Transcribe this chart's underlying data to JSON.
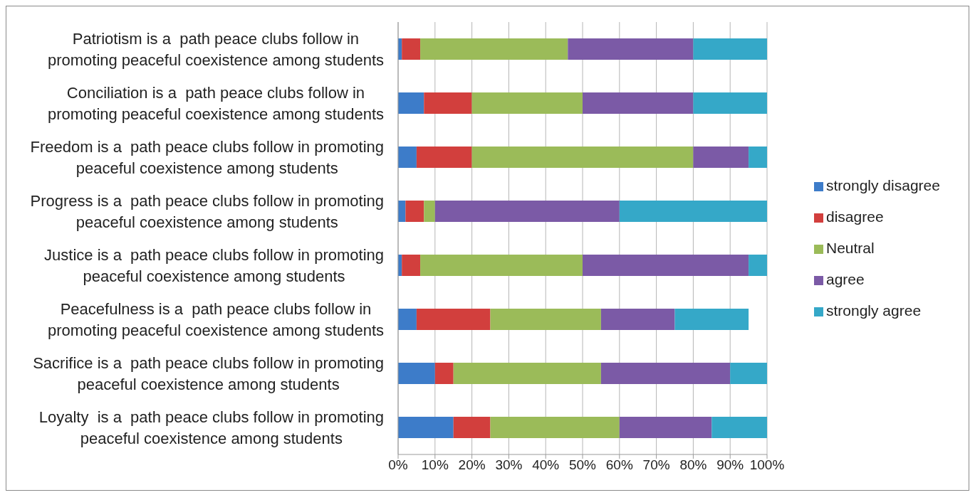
{
  "chart_data": {
    "type": "bar",
    "orientation": "horizontal",
    "stacked": true,
    "categories": [
      "Patriotism is a  path peace clubs follow in promoting peaceful coexistence among students",
      "Conciliation is a  path peace clubs follow in promoting peaceful coexistence among students",
      "Freedom is a  path peace clubs follow in promoting peaceful coexistence among students",
      "Progress is a  path peace clubs follow in promoting peaceful coexistence among students",
      "Justice is a  path peace clubs follow in promoting peaceful coexistence among students",
      "Peacefulness is a  path peace clubs follow in promoting peaceful coexistence among students",
      "Sacrifice is a  path peace clubs follow in promoting peaceful coexistence among students",
      "Loyalty  is a  path peace clubs follow in promoting peaceful coexistence among students"
    ],
    "series": [
      {
        "name": "strongly disagree",
        "color": "#3d7cc9",
        "values": [
          1,
          7,
          5,
          2,
          1,
          5,
          10,
          15
        ]
      },
      {
        "name": "disagree",
        "color": "#d23f3d",
        "values": [
          5,
          13,
          15,
          5,
          5,
          20,
          5,
          10
        ]
      },
      {
        "name": "Neutral",
        "color": "#9bbb59",
        "values": [
          40,
          30,
          60,
          3,
          44,
          30,
          40,
          35
        ]
      },
      {
        "name": "agree",
        "color": "#7b5aa6",
        "values": [
          34,
          30,
          15,
          50,
          45,
          20,
          35,
          25
        ]
      },
      {
        "name": "strongly agree",
        "color": "#35a8c8",
        "values": [
          20,
          20,
          5,
          40,
          5,
          20,
          10,
          15
        ]
      }
    ],
    "xlim": [
      0,
      100
    ],
    "xticks": [
      {
        "value": 0,
        "label": "0%"
      },
      {
        "value": 10,
        "label": "10%"
      },
      {
        "value": 20,
        "label": "20%"
      },
      {
        "value": 30,
        "label": "30%"
      },
      {
        "value": 40,
        "label": "40%"
      },
      {
        "value": 50,
        "label": "50%"
      },
      {
        "value": 60,
        "label": "60%"
      },
      {
        "value": 70,
        "label": "70%"
      },
      {
        "value": 80,
        "label": "80%"
      },
      {
        "value": 90,
        "label": "90%"
      },
      {
        "value": 100,
        "label": "100%"
      }
    ],
    "grid": "x",
    "legend": "right"
  }
}
